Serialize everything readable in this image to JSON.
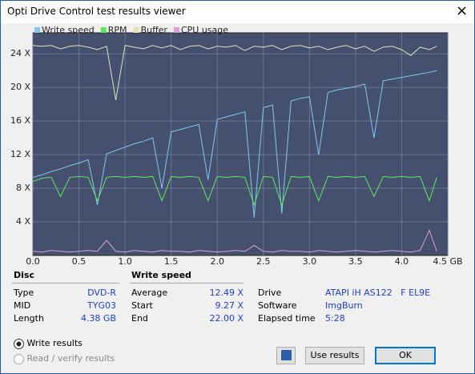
{
  "window": {
    "title": "Opti Drive Control test results viewer",
    "close": "×"
  },
  "chart_data": {
    "type": "line",
    "x": [
      0.0,
      0.1,
      0.2,
      0.3,
      0.4,
      0.5,
      0.6,
      0.7,
      0.8,
      0.9,
      1.0,
      1.1,
      1.2,
      1.3,
      1.4,
      1.5,
      1.6,
      1.7,
      1.8,
      1.9,
      2.0,
      2.1,
      2.2,
      2.3,
      2.4,
      2.5,
      2.6,
      2.7,
      2.8,
      2.9,
      3.0,
      3.1,
      3.2,
      3.3,
      3.4,
      3.5,
      3.6,
      3.7,
      3.8,
      3.9,
      4.0,
      4.1,
      4.2,
      4.3,
      4.38
    ],
    "series": [
      {
        "name": "Write speed",
        "color": "#7ec8f5",
        "values": [
          9.3,
          9.6,
          10.0,
          10.3,
          10.7,
          11.0,
          11.4,
          6.0,
          12.1,
          12.5,
          12.9,
          13.3,
          13.6,
          14.0,
          8.0,
          14.7,
          15.0,
          15.3,
          15.6,
          9.0,
          16.2,
          16.5,
          16.8,
          17.1,
          4.5,
          17.6,
          17.9,
          5.0,
          18.4,
          18.7,
          18.9,
          12.0,
          19.4,
          19.7,
          19.9,
          20.1,
          20.4,
          14.0,
          20.8,
          21.0,
          21.2,
          21.4,
          21.6,
          21.8,
          22.0
        ]
      },
      {
        "name": "RPM",
        "color": "#5ee85e",
        "values": [
          8.8,
          9.2,
          9.3,
          7.0,
          9.3,
          9.4,
          9.3,
          6.5,
          9.3,
          9.4,
          9.3,
          9.4,
          9.3,
          9.4,
          6.5,
          9.4,
          9.3,
          9.4,
          9.3,
          6.5,
          9.4,
          9.3,
          9.4,
          9.3,
          6.0,
          9.4,
          9.3,
          6.0,
          9.4,
          9.3,
          9.4,
          6.5,
          9.4,
          9.3,
          9.4,
          9.3,
          9.4,
          7.0,
          9.4,
          9.3,
          9.4,
          9.3,
          9.4,
          6.5,
          9.3
        ]
      },
      {
        "name": "Buffer",
        "color": "#e6e0b0",
        "values": [
          25.0,
          24.9,
          25.0,
          24.6,
          24.9,
          25.0,
          24.8,
          24.5,
          24.9,
          18.5,
          25.0,
          24.8,
          24.6,
          25.0,
          24.7,
          25.0,
          24.5,
          24.9,
          25.0,
          24.6,
          24.9,
          24.8,
          25.0,
          24.4,
          24.9,
          24.8,
          25.0,
          24.5,
          24.9,
          25.0,
          24.7,
          24.9,
          24.5,
          24.8,
          25.0,
          24.6,
          24.9,
          24.3,
          24.8,
          24.9,
          24.5,
          23.8,
          24.8,
          24.5,
          24.9
        ]
      },
      {
        "name": "CPU usage",
        "color": "#d8a0d8",
        "values": [
          0.5,
          0.4,
          0.6,
          0.5,
          0.4,
          0.5,
          0.6,
          0.5,
          1.8,
          0.5,
          0.4,
          0.6,
          0.5,
          0.4,
          0.6,
          0.5,
          0.5,
          0.4,
          0.6,
          0.5,
          0.4,
          0.5,
          0.6,
          0.5,
          1.2,
          0.5,
          0.4,
          0.6,
          0.5,
          0.5,
          0.4,
          0.6,
          0.5,
          0.4,
          0.5,
          0.6,
          0.5,
          0.4,
          0.5,
          0.6,
          0.5,
          0.4,
          0.6,
          3.0,
          0.5
        ]
      }
    ],
    "xlim": [
      0,
      4.5
    ],
    "ylim": [
      0,
      26.5
    ],
    "xticks": [
      {
        "value": 0,
        "label": "0.0"
      },
      {
        "value": 0.5,
        "label": "0.5"
      },
      {
        "value": 1,
        "label": "1.0"
      },
      {
        "value": 1.5,
        "label": "1.5"
      },
      {
        "value": 2,
        "label": "2.0"
      },
      {
        "value": 2.5,
        "label": "2.5"
      },
      {
        "value": 3,
        "label": "3.0"
      },
      {
        "value": 3.5,
        "label": "3.5"
      },
      {
        "value": 4,
        "label": "4.0"
      },
      {
        "value": 4.5,
        "label": "4.5 GB"
      }
    ],
    "yticks": [
      {
        "value": 4,
        "label": "4 X"
      },
      {
        "value": 8,
        "label": "8 X"
      },
      {
        "value": 12,
        "label": "12 X"
      },
      {
        "value": 16,
        "label": "16 X"
      },
      {
        "value": 20,
        "label": "20 X"
      },
      {
        "value": 24,
        "label": "24 X"
      }
    ],
    "grid": true
  },
  "disc": {
    "heading": "Disc",
    "rows": [
      [
        "Type",
        "DVD-R"
      ],
      [
        "MID",
        "TYG03"
      ],
      [
        "Length",
        "4.38 GB"
      ]
    ]
  },
  "write_speed": {
    "heading": "Write speed",
    "rows": [
      [
        "Average",
        "12.49 X"
      ],
      [
        "Start",
        "9.27 X"
      ],
      [
        "End",
        "22.00 X"
      ]
    ]
  },
  "info": {
    "rows": [
      [
        "Drive",
        "ATAPI iH AS122   F EL9E"
      ],
      [
        "Software",
        "ImgBurn"
      ],
      [
        "Elapsed time",
        "5:28"
      ]
    ]
  },
  "options": [
    "Write results",
    "Read / verify results"
  ],
  "buttons": [
    "Use results",
    "OK"
  ]
}
